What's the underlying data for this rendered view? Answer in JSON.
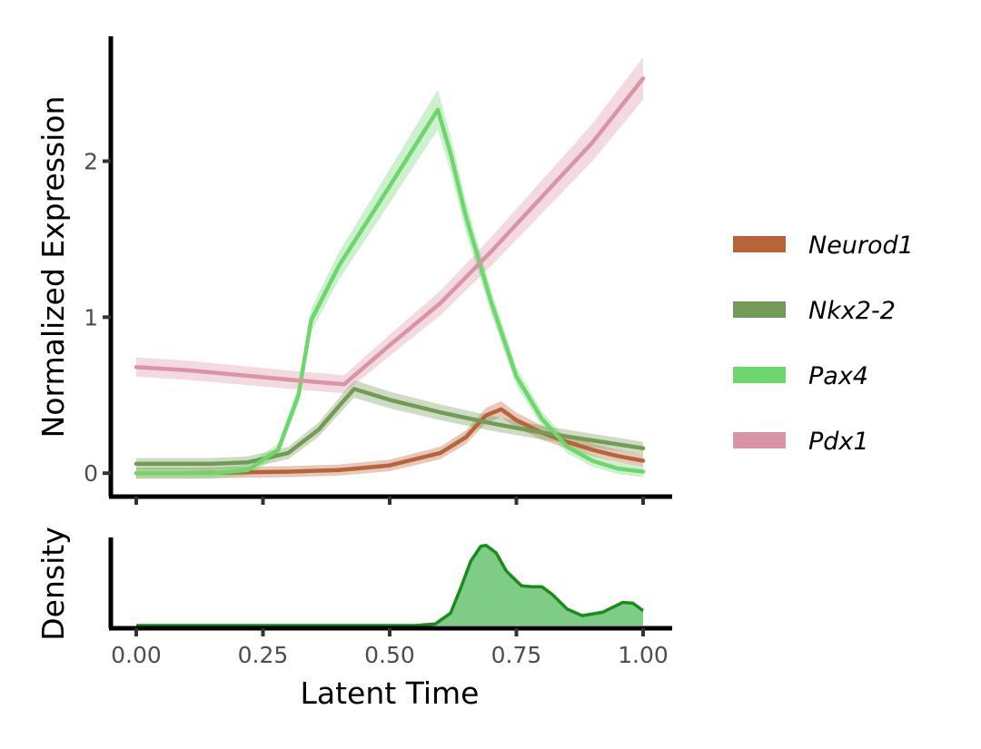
{
  "chart_data": [
    {
      "type": "line",
      "ylabel": "Normalized Expression",
      "xlim": [
        0,
        1
      ],
      "ylim": [
        -0.15,
        2.8
      ],
      "y_ticks": [
        "0",
        "1",
        "2"
      ],
      "y_tick_values": [
        0,
        1,
        2
      ],
      "x_tick_values": [
        0,
        0.25,
        0.5,
        0.75,
        1
      ],
      "legend_position": "right",
      "series": [
        {
          "name": "Neurod1",
          "color": "#b8643a",
          "x": [
            0,
            0.1,
            0.2,
            0.3,
            0.4,
            0.5,
            0.6,
            0.65,
            0.69,
            0.72,
            0.75,
            0.8,
            0.85,
            0.9,
            0.95,
            1.0
          ],
          "y": [
            0.0,
            0.0,
            0.005,
            0.01,
            0.02,
            0.05,
            0.13,
            0.23,
            0.37,
            0.41,
            0.34,
            0.26,
            0.2,
            0.15,
            0.11,
            0.08
          ]
        },
        {
          "name": "Nkx2-2",
          "color": "#739a56",
          "x": [
            0,
            0.15,
            0.22,
            0.3,
            0.36,
            0.4,
            0.43,
            0.5,
            0.6,
            0.7,
            0.8,
            0.9,
            1.0
          ],
          "y": [
            0.06,
            0.06,
            0.07,
            0.13,
            0.28,
            0.43,
            0.54,
            0.47,
            0.39,
            0.32,
            0.26,
            0.21,
            0.16
          ]
        },
        {
          "name": "Pax4",
          "color": "#6dd66d",
          "x": [
            0,
            0.15,
            0.22,
            0.28,
            0.32,
            0.345,
            0.4,
            0.5,
            0.595,
            0.62,
            0.65,
            0.7,
            0.75,
            0.8,
            0.85,
            0.9,
            0.95,
            1.0
          ],
          "y": [
            0.0,
            0.0,
            0.02,
            0.15,
            0.5,
            0.98,
            1.33,
            1.84,
            2.33,
            2.05,
            1.65,
            1.1,
            0.62,
            0.35,
            0.17,
            0.08,
            0.03,
            0.01
          ]
        },
        {
          "name": "Pdx1",
          "color": "#d994a6",
          "x": [
            0,
            0.1,
            0.2,
            0.3,
            0.41,
            0.5,
            0.6,
            0.7,
            0.8,
            0.9,
            1.0
          ],
          "y": [
            0.68,
            0.66,
            0.63,
            0.6,
            0.57,
            0.82,
            1.09,
            1.42,
            1.77,
            2.12,
            2.53
          ]
        }
      ]
    },
    {
      "type": "area",
      "xlabel": "Latent Time",
      "ylabel": "Density",
      "xlim": [
        0,
        1
      ],
      "ylim": [
        0,
        1
      ],
      "x_ticks": [
        "0.00",
        "0.25",
        "0.50",
        "0.75",
        "1.00"
      ],
      "x_tick_values": [
        0,
        0.25,
        0.5,
        0.75,
        1
      ],
      "line_color": "#1a8c1a",
      "fill_color": "#7fcc86",
      "x": [
        0,
        0.55,
        0.59,
        0.62,
        0.64,
        0.66,
        0.68,
        0.69,
        0.71,
        0.73,
        0.76,
        0.78,
        0.8,
        0.82,
        0.85,
        0.88,
        0.92,
        0.96,
        0.98,
        1.0
      ],
      "y": [
        0.0,
        0.0,
        0.02,
        0.15,
        0.45,
        0.78,
        0.96,
        0.97,
        0.88,
        0.66,
        0.48,
        0.47,
        0.47,
        0.38,
        0.2,
        0.12,
        0.16,
        0.28,
        0.27,
        0.18
      ]
    }
  ]
}
